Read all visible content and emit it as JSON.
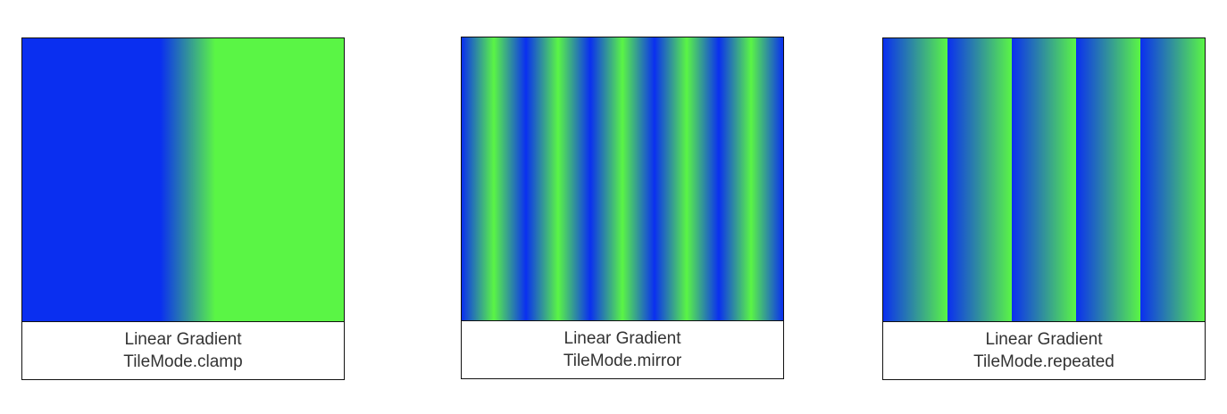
{
  "colors": {
    "blue": "#0a2ff0",
    "green": "#5af545",
    "border": "#111111",
    "caption_text": "#333333"
  },
  "panels": [
    {
      "mode": "clamp",
      "title": "Linear Gradient",
      "subtitle": "TileMode.clamp",
      "gradient_start": 0.43,
      "gradient_end": 0.6,
      "tile_count": 1
    },
    {
      "mode": "mirror",
      "title": "Linear Gradient",
      "subtitle": "TileMode.mirror",
      "tile_count": 5
    },
    {
      "mode": "repeated",
      "title": "Linear Gradient",
      "subtitle": "TileMode.repeated",
      "tile_count": 5
    }
  ]
}
